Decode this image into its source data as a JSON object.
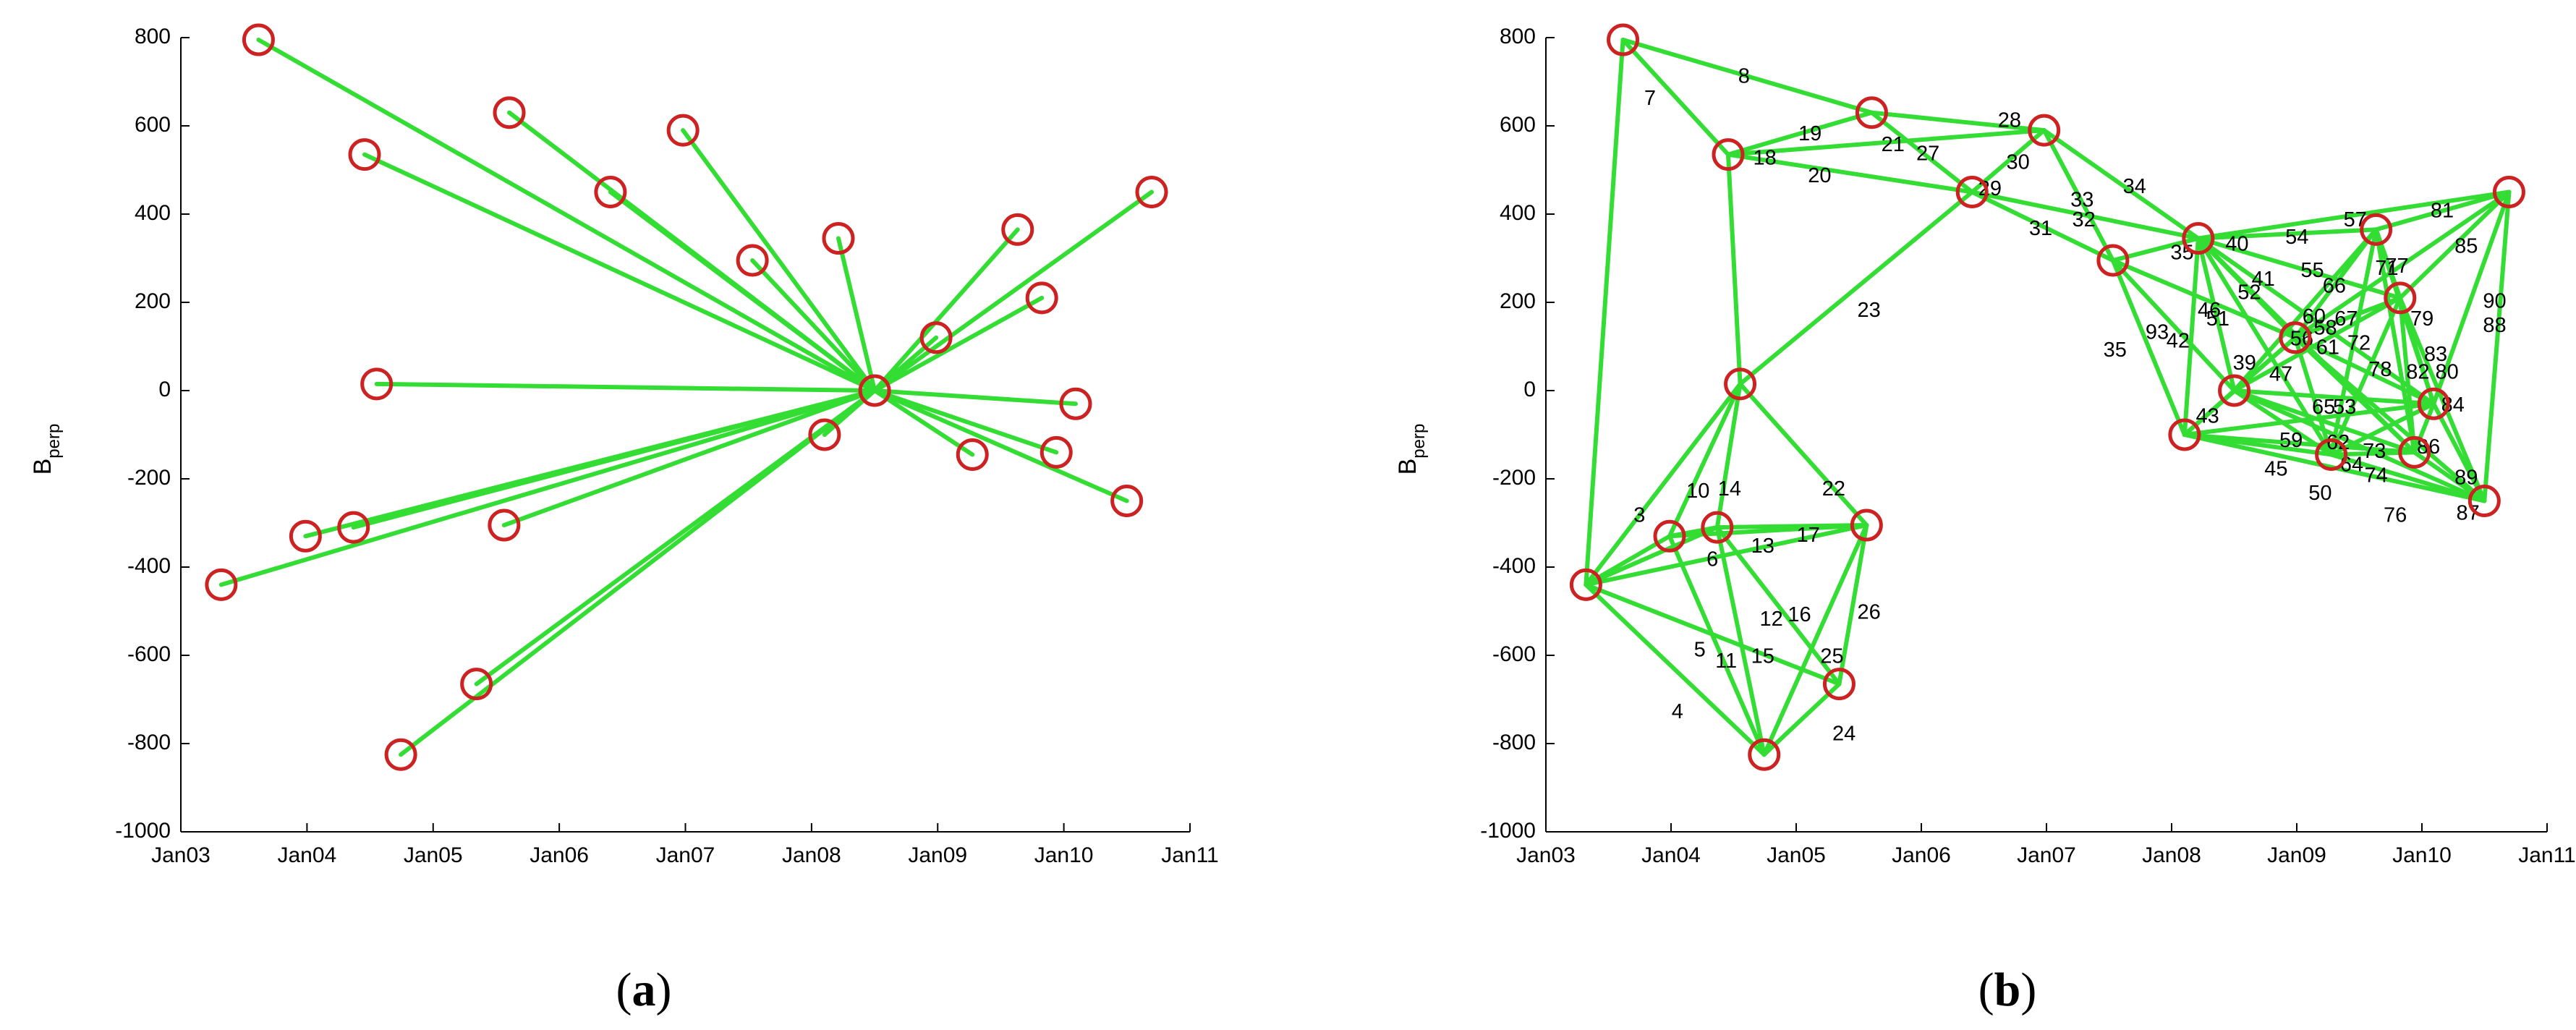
{
  "colors": {
    "edge": "#33dd33",
    "node": "#cc2222",
    "axis": "#000000"
  },
  "chart_data": [
    {
      "type": "scatter",
      "panel": "(a)",
      "panel_letter": "a",
      "ylabel": "B",
      "ylabel_sub": "perp",
      "xlabel": "",
      "title": "",
      "xlim": [
        "2003-01-01",
        "2011-01-01"
      ],
      "ylim": [
        -1000,
        800
      ],
      "xticks": [
        "Jan03",
        "Jan04",
        "Jan05",
        "Jan06",
        "Jan07",
        "Jan08",
        "Jan09",
        "Jan10",
        "Jan11"
      ],
      "yticks": [
        800,
        600,
        400,
        200,
        0,
        -200,
        -400,
        -600,
        -800,
        -1000
      ],
      "grid": false,
      "nodes": [
        {
          "x": "2003-04-28",
          "y": -440
        },
        {
          "x": "2003-08-14",
          "y": 795
        },
        {
          "x": "2003-12-28",
          "y": -330
        },
        {
          "x": "2004-05-15",
          "y": -310
        },
        {
          "x": "2004-06-16",
          "y": 535
        },
        {
          "x": "2004-07-21",
          "y": 15
        },
        {
          "x": "2004-09-29",
          "y": -825
        },
        {
          "x": "2005-05-06",
          "y": -665
        },
        {
          "x": "2005-07-25",
          "y": -305
        },
        {
          "x": "2005-08-09",
          "y": 630
        },
        {
          "x": "2006-05-29",
          "y": 450
        },
        {
          "x": "2006-12-25",
          "y": 590
        },
        {
          "x": "2007-07-14",
          "y": 295
        },
        {
          "x": "2008-02-08",
          "y": -100
        },
        {
          "x": "2008-03-19",
          "y": 345
        },
        {
          "x": "2008-07-02",
          "y": 0
        },
        {
          "x": "2008-12-27",
          "y": 120
        },
        {
          "x": "2009-04-11",
          "y": -145
        },
        {
          "x": "2009-08-20",
          "y": 365
        },
        {
          "x": "2009-10-29",
          "y": 210
        },
        {
          "x": "2009-12-10",
          "y": -140
        },
        {
          "x": "2010-02-04",
          "y": -30
        },
        {
          "x": "2010-07-02",
          "y": -250
        },
        {
          "x": "2010-09-12",
          "y": 450
        }
      ],
      "edges": [
        [
          15,
          0
        ],
        [
          15,
          1
        ],
        [
          15,
          2
        ],
        [
          15,
          3
        ],
        [
          15,
          4
        ],
        [
          15,
          5
        ],
        [
          15,
          6
        ],
        [
          15,
          7
        ],
        [
          15,
          8
        ],
        [
          15,
          9
        ],
        [
          15,
          10
        ],
        [
          15,
          11
        ],
        [
          15,
          12
        ],
        [
          15,
          13
        ],
        [
          15,
          14
        ],
        [
          15,
          16
        ],
        [
          15,
          17
        ],
        [
          15,
          18
        ],
        [
          15,
          19
        ],
        [
          15,
          20
        ],
        [
          15,
          21
        ],
        [
          15,
          22
        ],
        [
          15,
          23
        ]
      ],
      "edge_labels": []
    },
    {
      "type": "scatter",
      "panel": "(b)",
      "panel_letter": "b",
      "ylabel": "B",
      "ylabel_sub": "perp",
      "xlabel": "",
      "title": "",
      "xlim": [
        "2003-01-01",
        "2011-01-01"
      ],
      "ylim": [
        -1000,
        800
      ],
      "xticks": [
        "Jan03",
        "Jan04",
        "Jan05",
        "Jan06",
        "Jan07",
        "Jan08",
        "Jan09",
        "Jan10",
        "Jan11"
      ],
      "yticks": [
        800,
        600,
        400,
        200,
        0,
        -200,
        -400,
        -600,
        -800,
        -1000
      ],
      "grid": false,
      "nodes": [
        {
          "x": "2003-04-28",
          "y": -440
        },
        {
          "x": "2003-08-14",
          "y": 795
        },
        {
          "x": "2003-12-28",
          "y": -330
        },
        {
          "x": "2004-05-15",
          "y": -310
        },
        {
          "x": "2004-06-16",
          "y": 535
        },
        {
          "x": "2004-07-21",
          "y": 15
        },
        {
          "x": "2004-09-29",
          "y": -825
        },
        {
          "x": "2005-05-06",
          "y": -665
        },
        {
          "x": "2005-07-25",
          "y": -305
        },
        {
          "x": "2005-08-09",
          "y": 630
        },
        {
          "x": "2006-05-29",
          "y": 450
        },
        {
          "x": "2006-12-25",
          "y": 590
        },
        {
          "x": "2007-07-14",
          "y": 295
        },
        {
          "x": "2008-02-08",
          "y": -100
        },
        {
          "x": "2008-03-19",
          "y": 345
        },
        {
          "x": "2008-07-02",
          "y": 0
        },
        {
          "x": "2008-12-27",
          "y": 120
        },
        {
          "x": "2009-04-11",
          "y": -145
        },
        {
          "x": "2009-08-20",
          "y": 365
        },
        {
          "x": "2009-10-29",
          "y": 210
        },
        {
          "x": "2009-12-10",
          "y": -140
        },
        {
          "x": "2010-02-04",
          "y": -30
        },
        {
          "x": "2010-07-02",
          "y": -250
        },
        {
          "x": "2010-09-12",
          "y": 450
        }
      ],
      "edges": [
        [
          0,
          1
        ],
        [
          0,
          2
        ],
        [
          0,
          3
        ],
        [
          0,
          6
        ],
        [
          0,
          7
        ],
        [
          0,
          8
        ],
        [
          0,
          5
        ],
        [
          2,
          3
        ],
        [
          2,
          8
        ],
        [
          2,
          5
        ],
        [
          2,
          6
        ],
        [
          3,
          8
        ],
        [
          3,
          5
        ],
        [
          3,
          6
        ],
        [
          3,
          7
        ],
        [
          5,
          8
        ],
        [
          6,
          7
        ],
        [
          6,
          8
        ],
        [
          7,
          8
        ],
        [
          1,
          4
        ],
        [
          1,
          9
        ],
        [
          4,
          5
        ],
        [
          4,
          9
        ],
        [
          4,
          10
        ],
        [
          4,
          11
        ],
        [
          5,
          10
        ],
        [
          9,
          10
        ],
        [
          9,
          11
        ],
        [
          10,
          11
        ],
        [
          10,
          12
        ],
        [
          10,
          14
        ],
        [
          11,
          12
        ],
        [
          11,
          14
        ],
        [
          12,
          14
        ],
        [
          12,
          13
        ],
        [
          12,
          15
        ],
        [
          12,
          16
        ],
        [
          14,
          15
        ],
        [
          14,
          16
        ],
        [
          14,
          18
        ],
        [
          14,
          19
        ],
        [
          14,
          23
        ],
        [
          14,
          17
        ],
        [
          14,
          20
        ],
        [
          14,
          21
        ],
        [
          14,
          13
        ],
        [
          13,
          15
        ],
        [
          13,
          16
        ],
        [
          13,
          17
        ],
        [
          13,
          20
        ],
        [
          13,
          21
        ],
        [
          13,
          22
        ],
        [
          15,
          16
        ],
        [
          15,
          17
        ],
        [
          15,
          18
        ],
        [
          15,
          19
        ],
        [
          15,
          20
        ],
        [
          15,
          21
        ],
        [
          15,
          22
        ],
        [
          16,
          17
        ],
        [
          16,
          18
        ],
        [
          16,
          19
        ],
        [
          16,
          20
        ],
        [
          16,
          21
        ],
        [
          16,
          22
        ],
        [
          16,
          23
        ],
        [
          17,
          18
        ],
        [
          17,
          19
        ],
        [
          17,
          20
        ],
        [
          17,
          21
        ],
        [
          17,
          22
        ],
        [
          18,
          19
        ],
        [
          18,
          20
        ],
        [
          18,
          21
        ],
        [
          18,
          23
        ],
        [
          19,
          20
        ],
        [
          19,
          21
        ],
        [
          19,
          22
        ],
        [
          19,
          23
        ],
        [
          20,
          21
        ],
        [
          20,
          22
        ],
        [
          21,
          22
        ],
        [
          21,
          23
        ],
        [
          22,
          23
        ]
      ],
      "edge_labels": [
        {
          "text": "7",
          "x": "2003-11-01",
          "y": 660
        },
        {
          "text": "8",
          "x": "2004-08-01",
          "y": 710
        },
        {
          "text": "19",
          "x": "2005-02-10",
          "y": 580
        },
        {
          "text": "21",
          "x": "2005-10-10",
          "y": 555
        },
        {
          "text": "27",
          "x": "2006-01-20",
          "y": 535
        },
        {
          "text": "28",
          "x": "2006-09-15",
          "y": 610
        },
        {
          "text": "20",
          "x": "2005-03-10",
          "y": 485
        },
        {
          "text": "30",
          "x": "2006-10-10",
          "y": 515
        },
        {
          "text": "29",
          "x": "2006-07-20",
          "y": 455
        },
        {
          "text": "34",
          "x": "2007-09-15",
          "y": 460
        },
        {
          "text": "33",
          "x": "2007-04-15",
          "y": 430
        },
        {
          "text": "31",
          "x": "2006-12-15",
          "y": 365
        },
        {
          "text": "32",
          "x": "2007-04-20",
          "y": 385
        },
        {
          "text": "18",
          "x": "2004-10-01",
          "y": 525
        },
        {
          "text": "23",
          "x": "2005-08-01",
          "y": 180
        },
        {
          "text": "35",
          "x": "2008-02-01",
          "y": 310
        },
        {
          "text": "40",
          "x": "2008-07-10",
          "y": 330
        },
        {
          "text": "54",
          "x": "2009-01-01",
          "y": 345
        },
        {
          "text": "57",
          "x": "2009-06-20",
          "y": 385
        },
        {
          "text": "81",
          "x": "2010-03-01",
          "y": 405
        },
        {
          "text": "85",
          "x": "2010-05-10",
          "y": 325
        },
        {
          "text": "55",
          "x": "2009-02-15",
          "y": 270
        },
        {
          "text": "46",
          "x": "2008-04-20",
          "y": 180
        },
        {
          "text": "51",
          "x": "2008-05-15",
          "y": 160
        },
        {
          "text": "52",
          "x": "2008-08-15",
          "y": 220
        },
        {
          "text": "41",
          "x": "2008-09-25",
          "y": 250
        },
        {
          "text": "66",
          "x": "2009-04-20",
          "y": 235
        },
        {
          "text": "71",
          "x": "2009-09-20",
          "y": 275
        },
        {
          "text": "77",
          "x": "2009-10-20",
          "y": 280
        },
        {
          "text": "79",
          "x": "2010-01-01",
          "y": 160
        },
        {
          "text": "90",
          "x": "2010-08-01",
          "y": 200
        },
        {
          "text": "88",
          "x": "2010-08-01",
          "y": 145
        },
        {
          "text": "93",
          "x": "2007-11-20",
          "y": 130
        },
        {
          "text": "42",
          "x": "2008-01-20",
          "y": 110
        },
        {
          "text": "35",
          "x": "2007-07-20",
          "y": 90
        },
        {
          "text": "60",
          "x": "2009-02-20",
          "y": 165
        },
        {
          "text": "58",
          "x": "2009-03-25",
          "y": 140
        },
        {
          "text": "67",
          "x": "2009-05-25",
          "y": 160
        },
        {
          "text": "56",
          "x": "2009-01-15",
          "y": 115
        },
        {
          "text": "61",
          "x": "2009-04-01",
          "y": 95
        },
        {
          "text": "72",
          "x": "2009-07-01",
          "y": 105
        },
        {
          "text": "83",
          "x": "2010-02-10",
          "y": 80
        },
        {
          "text": "39",
          "x": "2008-08-01",
          "y": 60
        },
        {
          "text": "47",
          "x": "2008-11-15",
          "y": 35
        },
        {
          "text": "78",
          "x": "2009-09-01",
          "y": 45
        },
        {
          "text": "82",
          "x": "2009-12-20",
          "y": 40
        },
        {
          "text": "80",
          "x": "2010-03-15",
          "y": 40
        },
        {
          "text": "43",
          "x": "2008-04-15",
          "y": -60
        },
        {
          "text": "65",
          "x": "2009-03-20",
          "y": -40
        },
        {
          "text": "53",
          "x": "2009-05-20",
          "y": -40
        },
        {
          "text": "84",
          "x": "2010-04-01",
          "y": -35
        },
        {
          "text": "59",
          "x": "2008-12-15",
          "y": -115
        },
        {
          "text": "62",
          "x": "2009-05-01",
          "y": -120
        },
        {
          "text": "86",
          "x": "2010-01-20",
          "y": -130
        },
        {
          "text": "73",
          "x": "2009-08-15",
          "y": -140
        },
        {
          "text": "89",
          "x": "2010-05-10",
          "y": -200
        },
        {
          "text": "45",
          "x": "2008-11-01",
          "y": -180
        },
        {
          "text": "64",
          "x": "2009-06-10",
          "y": -170
        },
        {
          "text": "74",
          "x": "2009-08-20",
          "y": -195
        },
        {
          "text": "50",
          "x": "2009-03-10",
          "y": -235
        },
        {
          "text": "76",
          "x": "2009-10-15",
          "y": -285
        },
        {
          "text": "87",
          "x": "2010-05-15",
          "y": -280
        },
        {
          "text": "10",
          "x": "2004-03-20",
          "y": -230
        },
        {
          "text": "14",
          "x": "2004-06-20",
          "y": -225
        },
        {
          "text": "22",
          "x": "2005-04-20",
          "y": -225
        },
        {
          "text": "3",
          "x": "2003-10-01",
          "y": -285
        },
        {
          "text": "13",
          "x": "2004-09-25",
          "y": -355
        },
        {
          "text": "17",
          "x": "2005-02-05",
          "y": -330
        },
        {
          "text": "6",
          "x": "2004-05-01",
          "y": -385
        },
        {
          "text": "12",
          "x": "2004-10-20",
          "y": -520
        },
        {
          "text": "16",
          "x": "2005-01-10",
          "y": -510
        },
        {
          "text": "26",
          "x": "2005-08-01",
          "y": -505
        },
        {
          "text": "5",
          "x": "2004-03-25",
          "y": -590
        },
        {
          "text": "11",
          "x": "2004-06-10",
          "y": -615
        },
        {
          "text": "15",
          "x": "2004-09-25",
          "y": -605
        },
        {
          "text": "25",
          "x": "2005-04-15",
          "y": -605
        },
        {
          "text": "4",
          "x": "2004-01-20",
          "y": -730
        },
        {
          "text": "24",
          "x": "2005-05-20",
          "y": -780
        }
      ]
    }
  ]
}
